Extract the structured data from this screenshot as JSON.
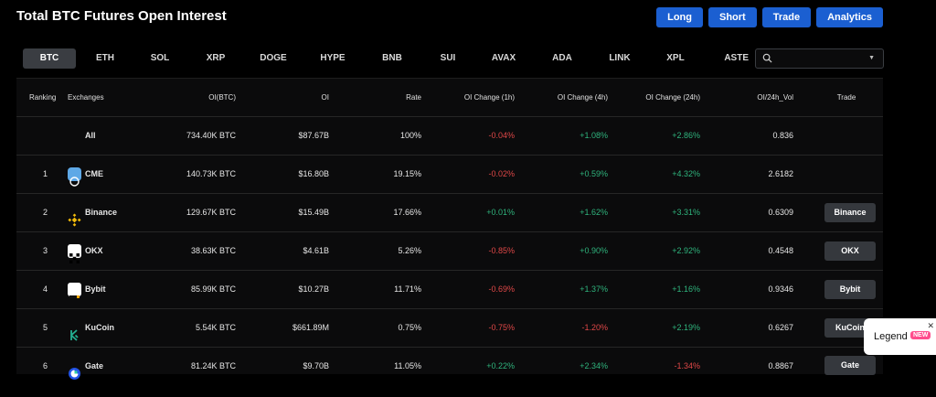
{
  "page": {
    "title": "Total BTC Futures Open Interest"
  },
  "actions": [
    {
      "label": "Long",
      "name": "long-button"
    },
    {
      "label": "Short",
      "name": "short-button"
    },
    {
      "label": "Trade",
      "name": "trade-button"
    },
    {
      "label": "Analytics",
      "name": "analytics-button"
    }
  ],
  "tabs": [
    {
      "label": "BTC",
      "active": true
    },
    {
      "label": "ETH"
    },
    {
      "label": "SOL"
    },
    {
      "label": "XRP"
    },
    {
      "label": "DOGE"
    },
    {
      "label": "HYPE"
    },
    {
      "label": "BNB"
    },
    {
      "label": "SUI"
    },
    {
      "label": "AVAX"
    },
    {
      "label": "ADA"
    },
    {
      "label": "LINK"
    },
    {
      "label": "XPL"
    },
    {
      "label": "ASTE"
    }
  ],
  "search": {
    "value": "",
    "icon": "search-icon",
    "dropdown_icon": "chevron-down-icon"
  },
  "table": {
    "headers": {
      "rank": "Ranking",
      "exchange": "Exchanges",
      "oi_btc": "OI(BTC)",
      "oi": "OI",
      "rate": "Rate",
      "chg1h": "OI Change (1h)",
      "chg4h": "OI Change (4h)",
      "chg24h": "OI Change (24h)",
      "vol": "OI/24h_Vol",
      "trade": "Trade"
    },
    "rows": [
      {
        "rank": "",
        "exchange": "All",
        "logo": "",
        "oi_btc": "734.40K BTC",
        "oi": "$87.67B",
        "rate": "100%",
        "chg1h": "-0.04%",
        "chg4h": "+1.08%",
        "chg24h": "+2.86%",
        "vol": "0.836",
        "trade": ""
      },
      {
        "rank": "1",
        "exchange": "CME",
        "logo": "cme-icon",
        "oi_btc": "140.73K BTC",
        "oi": "$16.80B",
        "rate": "19.15%",
        "chg1h": "-0.02%",
        "chg4h": "+0.59%",
        "chg24h": "+4.32%",
        "vol": "2.6182",
        "trade": ""
      },
      {
        "rank": "2",
        "exchange": "Binance",
        "logo": "binance-icon",
        "oi_btc": "129.67K BTC",
        "oi": "$15.49B",
        "rate": "17.66%",
        "chg1h": "+0.01%",
        "chg4h": "+1.62%",
        "chg24h": "+3.31%",
        "vol": "0.6309",
        "trade": "Binance"
      },
      {
        "rank": "3",
        "exchange": "OKX",
        "logo": "okx-icon",
        "oi_btc": "38.63K BTC",
        "oi": "$4.61B",
        "rate": "5.26%",
        "chg1h": "-0.85%",
        "chg4h": "+0.90%",
        "chg24h": "+2.92%",
        "vol": "0.4548",
        "trade": "OKX"
      },
      {
        "rank": "4",
        "exchange": "Bybit",
        "logo": "bybit-icon",
        "oi_btc": "85.99K BTC",
        "oi": "$10.27B",
        "rate": "11.71%",
        "chg1h": "-0.69%",
        "chg4h": "+1.37%",
        "chg24h": "+1.16%",
        "vol": "0.9346",
        "trade": "Bybit"
      },
      {
        "rank": "5",
        "exchange": "KuCoin",
        "logo": "kucoin-icon",
        "oi_btc": "5.54K BTC",
        "oi": "$661.89M",
        "rate": "0.75%",
        "chg1h": "-0.75%",
        "chg4h": "-1.20%",
        "chg24h": "+2.19%",
        "vol": "0.6267",
        "trade": "KuCoin"
      },
      {
        "rank": "6",
        "exchange": "Gate",
        "logo": "gate-icon",
        "oi_btc": "81.24K BTC",
        "oi": "$9.70B",
        "rate": "11.05%",
        "chg1h": "+0.22%",
        "chg4h": "+2.34%",
        "chg24h": "-1.34%",
        "vol": "0.8867",
        "trade": "Gate"
      }
    ]
  },
  "legend": {
    "label": "Legend",
    "badge": "NEW",
    "close_icon": "close-icon"
  },
  "colors": {
    "accent": "#1b5fd1",
    "positive": "#2fb47d",
    "negative": "#e04848",
    "badge": "#ff4d8d"
  }
}
